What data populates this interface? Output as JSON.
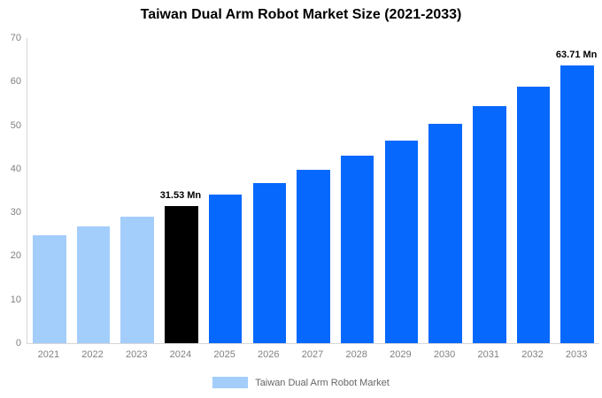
{
  "title": "Taiwan Dual Arm Robot Market Size (2021-2033)",
  "legend": {
    "label": "Taiwan Dual Arm Robot Market",
    "swatch_color": "#A3CDFB"
  },
  "colors": {
    "historical_bar": "#A3CDFB",
    "base_year_bar": "#000000",
    "forecast_bar": "#0668FC",
    "axis_text": "#808080",
    "axis_line": "#d6d6d6",
    "data_label_text": "#000000",
    "legend_text": "#666666",
    "title_text": "#000000",
    "background": "#ffffff"
  },
  "chart_data": {
    "type": "bar",
    "title": "Taiwan Dual Arm Robot Market Size (2021-2033)",
    "unit": "Mn",
    "categories": [
      "2021",
      "2022",
      "2023",
      "2024",
      "2025",
      "2026",
      "2027",
      "2028",
      "2029",
      "2030",
      "2031",
      "2032",
      "2033"
    ],
    "values": [
      24.7,
      26.8,
      29.1,
      31.53,
      34.0,
      36.7,
      39.8,
      43.0,
      46.5,
      50.3,
      54.4,
      58.9,
      63.71
    ],
    "bar_styles": [
      "historical",
      "historical",
      "historical",
      "base_year",
      "forecast",
      "forecast",
      "forecast",
      "forecast",
      "forecast",
      "forecast",
      "forecast",
      "forecast",
      "forecast"
    ],
    "data_labels": {
      "2024": "31.53 Mn",
      "2033": "63.71 Mn"
    },
    "xlabel": "",
    "ylabel": "",
    "ylim": [
      0,
      70
    ],
    "yticks": [
      0,
      10,
      20,
      30,
      40,
      50,
      60,
      70
    ],
    "grid": false,
    "legend_position": "bottom",
    "legend_entries": [
      "Taiwan Dual Arm Robot Market"
    ]
  }
}
